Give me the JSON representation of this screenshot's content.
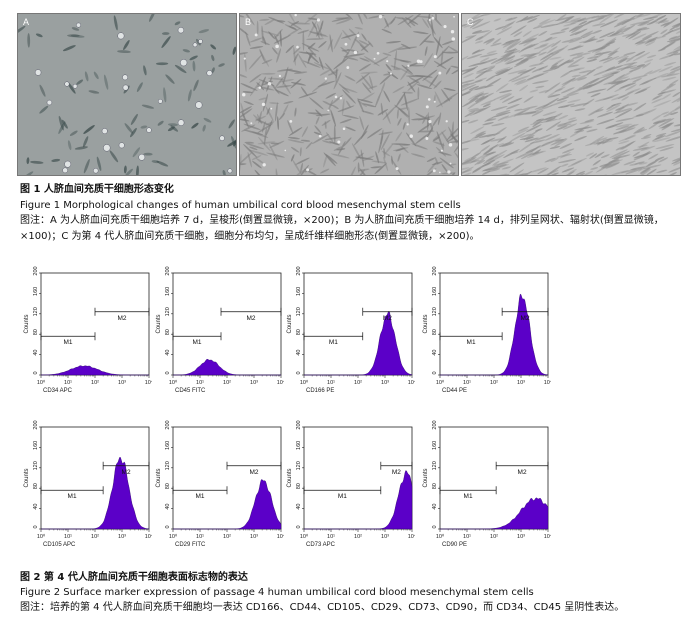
{
  "figure1": {
    "panels": [
      {
        "label": "A",
        "bg": "#9aa0a0",
        "density": 80,
        "cell": "#3a4a4a"
      },
      {
        "label": "B",
        "bg": "#b0b0b0",
        "density": 420,
        "cell": "#7a7a7a"
      },
      {
        "label": "C",
        "bg": "#c4c4c4",
        "density": 700,
        "cell": "#8e8e8e"
      }
    ],
    "caption_cn": "图 1   人脐血间充质干细胞形态变化",
    "caption_en": "Figure 1    Morphological changes of human umbilical cord blood mesenchymal stem cells",
    "note": "图注：A 为人脐血间充质干细胞培养 7 d，呈梭形(倒置显微镜，×200)；B 为人脐血间充质干细胞培养 14 d，排列呈网状、辐射状(倒置显微镜，×100)；C 为第 4 代人脐血间充质干细胞，细胞分布均匀，呈成纤维样细胞形态(倒置显微镜，×200)。"
  },
  "figure2": {
    "caption_cn": "图 2   第 4 代人脐血间充质干细胞表面标志物的表达",
    "caption_en": "Figure 2    Surface marker expression of passage 4 human umbilical cord blood mesenchymal stem cells",
    "note": "图注：培养的第 4 代人脐血间充质干细胞均一表达 CD166、CD44、CD105、CD29、CD73、CD90，而 CD34、CD45 呈阴性表达。"
  },
  "chart_data": [
    {
      "type": "area",
      "xlabel": "CD34 APC",
      "ylabel": "Counts",
      "x_scale": "log",
      "xlim": [
        1,
        10000
      ],
      "x_ticks": [
        "10⁰",
        "10¹",
        "10²",
        "10³",
        "10⁴"
      ],
      "ylim": [
        0,
        200
      ],
      "y_ticks": [
        0,
        40,
        80,
        120,
        160,
        200
      ],
      "gates": [
        {
          "name": "M1",
          "range": [
            1,
            100
          ]
        },
        {
          "name": "M2",
          "range": [
            100,
            10000
          ]
        }
      ],
      "peak_log": 1.6,
      "peak_counts": 18,
      "width": 0.5,
      "fill": "#5b00c8"
    },
    {
      "type": "area",
      "xlabel": "CD45 FITC",
      "ylabel": "Counts",
      "x_scale": "log",
      "xlim": [
        1,
        10000
      ],
      "x_ticks": [
        "10⁰",
        "10¹",
        "10²",
        "10³",
        "10⁴"
      ],
      "ylim": [
        0,
        200
      ],
      "y_ticks": [
        0,
        40,
        80,
        120,
        160,
        200
      ],
      "gates": [
        {
          "name": "M1",
          "range": [
            1,
            60
          ]
        },
        {
          "name": "M2",
          "range": [
            60,
            10000
          ]
        }
      ],
      "peak_log": 1.35,
      "peak_counts": 30,
      "width": 0.35,
      "fill": "#5b00c8"
    },
    {
      "type": "area",
      "xlabel": "CD166 PE",
      "ylabel": "Counts",
      "x_scale": "log",
      "xlim": [
        1,
        10000
      ],
      "x_ticks": [
        "10⁰",
        "10¹",
        "10²",
        "10³",
        "10⁴"
      ],
      "ylim": [
        0,
        200
      ],
      "y_ticks": [
        0,
        40,
        80,
        120,
        160,
        200
      ],
      "gates": [
        {
          "name": "M1",
          "range": [
            1,
            150
          ]
        },
        {
          "name": "M2",
          "range": [
            150,
            10000
          ]
        }
      ],
      "peak_log": 3.1,
      "peak_counts": 120,
      "width": 0.28,
      "fill": "#5b00c8"
    },
    {
      "type": "area",
      "xlabel": "CD44 PE",
      "ylabel": "Counts",
      "x_scale": "log",
      "xlim": [
        1,
        10000
      ],
      "x_ticks": [
        "10⁰",
        "10¹",
        "10²",
        "10³",
        "10⁴"
      ],
      "ylim": [
        0,
        200
      ],
      "y_ticks": [
        0,
        40,
        80,
        120,
        160,
        200
      ],
      "gates": [
        {
          "name": "M1",
          "range": [
            1,
            200
          ]
        },
        {
          "name": "M2",
          "range": [
            200,
            10000
          ]
        }
      ],
      "peak_log": 3.05,
      "peak_counts": 155,
      "width": 0.27,
      "fill": "#5b00c8"
    },
    {
      "type": "area",
      "xlabel": "CD105 APC",
      "ylabel": "Counts",
      "x_scale": "log",
      "xlim": [
        1,
        10000
      ],
      "x_ticks": [
        "10⁰",
        "10¹",
        "10²",
        "10³",
        "10⁴"
      ],
      "ylim": [
        0,
        200
      ],
      "y_ticks": [
        0,
        40,
        80,
        120,
        160,
        200
      ],
      "gates": [
        {
          "name": "M1",
          "range": [
            1,
            200
          ]
        },
        {
          "name": "M2",
          "range": [
            200,
            10000
          ]
        }
      ],
      "peak_log": 2.95,
      "peak_counts": 140,
      "width": 0.3,
      "fill": "#5b00c8"
    },
    {
      "type": "area",
      "xlabel": "CD29 FITC",
      "ylabel": "Counts",
      "x_scale": "log",
      "xlim": [
        1,
        10000
      ],
      "x_ticks": [
        "10⁰",
        "10¹",
        "10²",
        "10³",
        "10⁴"
      ],
      "ylim": [
        0,
        200
      ],
      "y_ticks": [
        0,
        40,
        80,
        120,
        160,
        200
      ],
      "gates": [
        {
          "name": "M1",
          "range": [
            1,
            100
          ]
        },
        {
          "name": "M2",
          "range": [
            100,
            10000
          ]
        }
      ],
      "peak_log": 3.35,
      "peak_counts": 95,
      "width": 0.3,
      "fill": "#5b00c8"
    },
    {
      "type": "area",
      "xlabel": "CD73 APC",
      "ylabel": "Counts",
      "x_scale": "log",
      "xlim": [
        1,
        10000
      ],
      "x_ticks": [
        "10⁰",
        "10¹",
        "10²",
        "10³",
        "10⁴"
      ],
      "ylim": [
        0,
        200
      ],
      "y_ticks": [
        0,
        40,
        80,
        120,
        160,
        200
      ],
      "gates": [
        {
          "name": "M1",
          "range": [
            1,
            700
          ]
        },
        {
          "name": "M2",
          "range": [
            700,
            10000
          ]
        }
      ],
      "peak_log": 3.8,
      "peak_counts": 110,
      "width": 0.3,
      "fill": "#5b00c8"
    },
    {
      "type": "area",
      "xlabel": "CD90 PE",
      "ylabel": "Counts",
      "x_scale": "log",
      "xlim": [
        1,
        10000
      ],
      "x_ticks": [
        "10⁰",
        "10¹",
        "10²",
        "10³",
        "10⁴"
      ],
      "ylim": [
        0,
        200
      ],
      "y_ticks": [
        0,
        40,
        80,
        120,
        160,
        200
      ],
      "gates": [
        {
          "name": "M1",
          "range": [
            1,
            120
          ]
        },
        {
          "name": "M2",
          "range": [
            120,
            10000
          ]
        }
      ],
      "peak_log": 3.55,
      "peak_counts": 60,
      "width": 0.55,
      "fill": "#5b00c8"
    }
  ]
}
